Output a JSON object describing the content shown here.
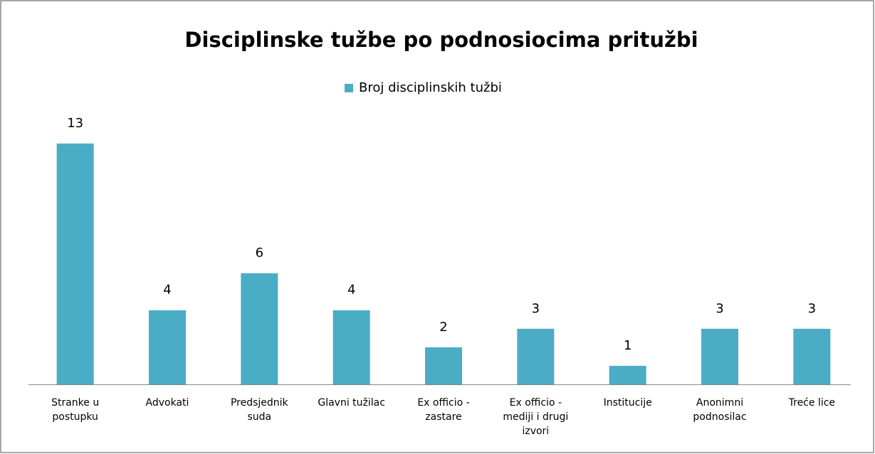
{
  "chart_data": {
    "type": "bar",
    "title": "Disciplinske tužbe po podnosiocima pritužbi",
    "categories": [
      "Stranke u postupku",
      "Advokati",
      "Predsjednik suda",
      "Glavni tužilac",
      "Ex officio - zastare",
      "Ex officio - mediji i drugi izvori",
      "Institucije",
      "Anonimni podnosilac",
      "Treće lice"
    ],
    "series": [
      {
        "name": "Broj disciplinskih tužbi",
        "color": "#4bacc6",
        "values": [
          13,
          4,
          6,
          4,
          2,
          3,
          1,
          3,
          3
        ]
      }
    ],
    "ylim": [
      0,
      13
    ],
    "legend": "top"
  }
}
